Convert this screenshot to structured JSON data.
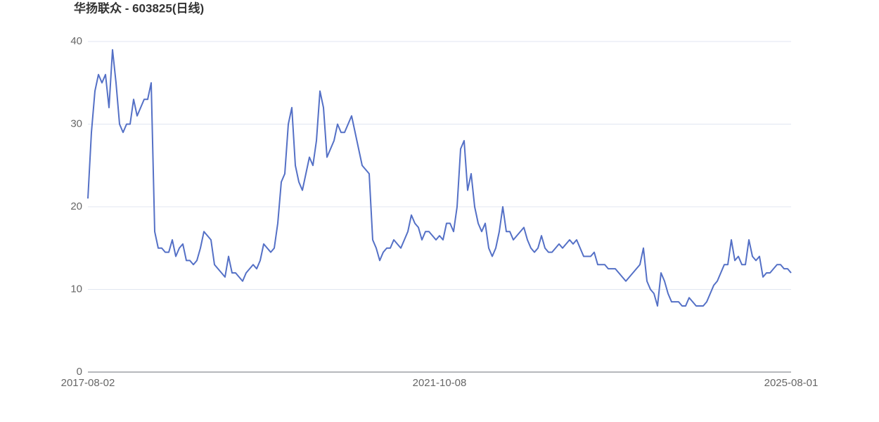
{
  "chart_data": {
    "type": "line",
    "title": "华扬联众 - 603825(日线)",
    "categories": [
      "2017-08-02",
      null,
      null,
      null,
      null,
      null,
      null,
      null,
      null,
      null,
      null,
      null,
      null,
      null,
      null,
      null,
      null,
      null,
      null,
      null,
      null,
      null,
      null,
      null,
      null,
      null,
      null,
      null,
      null,
      null,
      null,
      null,
      null,
      null,
      null,
      null,
      null,
      null,
      null,
      null,
      null,
      null,
      null,
      null,
      null,
      null,
      null,
      null,
      null,
      null,
      null,
      null,
      null,
      null,
      null,
      null,
      null,
      null,
      null,
      null,
      null,
      null,
      null,
      null,
      null,
      null,
      null,
      null,
      null,
      null,
      null,
      null,
      null,
      null,
      null,
      null,
      null,
      null,
      null,
      null,
      null,
      null,
      null,
      null,
      null,
      null,
      null,
      null,
      null,
      null,
      null,
      null,
      null,
      null,
      null,
      null,
      null,
      null,
      null,
      null,
      "2021-10-08",
      null,
      null,
      null,
      null,
      null,
      null,
      null,
      null,
      null,
      null,
      null,
      null,
      null,
      null,
      null,
      null,
      null,
      null,
      null,
      null,
      null,
      null,
      null,
      null,
      null,
      null,
      null,
      null,
      null,
      null,
      null,
      null,
      null,
      null,
      null,
      null,
      null,
      null,
      null,
      null,
      null,
      null,
      null,
      null,
      null,
      null,
      null,
      null,
      null,
      null,
      null,
      null,
      null,
      null,
      null,
      null,
      null,
      null,
      null,
      null,
      null,
      null,
      null,
      null,
      null,
      null,
      null,
      null,
      null,
      null,
      null,
      null,
      null,
      null,
      null,
      null,
      null,
      null,
      null,
      null,
      null,
      null,
      null,
      null,
      null,
      null,
      null,
      null,
      null,
      null,
      null,
      null,
      null,
      null,
      null,
      null,
      null,
      null,
      null,
      "2025-08-01"
    ],
    "values": [
      21,
      29,
      34,
      36,
      35,
      36,
      32,
      39,
      35,
      30,
      29,
      30,
      30,
      33,
      31,
      32,
      33,
      33,
      35,
      17,
      15,
      15,
      14.5,
      14.5,
      16,
      14,
      15,
      15.5,
      13.5,
      13.5,
      13,
      13.5,
      15,
      17,
      16.5,
      16,
      13,
      12.5,
      12,
      11.5,
      14,
      12,
      12,
      11.5,
      11,
      12,
      12.5,
      13,
      12.5,
      13.5,
      15.5,
      15,
      14.5,
      15,
      18,
      23,
      24,
      30,
      32,
      25,
      23,
      22,
      24,
      26,
      25,
      28,
      34,
      32,
      26,
      27,
      28,
      30,
      29,
      29,
      30,
      31,
      29,
      27,
      25,
      24.5,
      24,
      16,
      15,
      13.5,
      14.5,
      15,
      15,
      16,
      15.5,
      15,
      16,
      17,
      19,
      18,
      17.5,
      16,
      17,
      17,
      16.5,
      16,
      16.5,
      16,
      18,
      18,
      17,
      20,
      27,
      28,
      22,
      24,
      20,
      18,
      17,
      18,
      15,
      14,
      15,
      17,
      20,
      17,
      17,
      16,
      16.5,
      17,
      17.5,
      16,
      15,
      14.5,
      15,
      16.5,
      15,
      14.5,
      14.5,
      15,
      15.5,
      15,
      15.5,
      16,
      15.5,
      16,
      15,
      14,
      14,
      14,
      14.5,
      13,
      13,
      13,
      12.5,
      12.5,
      12.5,
      12,
      11.5,
      11,
      11.5,
      12,
      12.5,
      13,
      15,
      11,
      10,
      9.5,
      8,
      12,
      11,
      9.5,
      8.5,
      8.5,
      8.5,
      8,
      8,
      9,
      8.5,
      8,
      8,
      8,
      8.5,
      9.5,
      10.5,
      11,
      12,
      13,
      13,
      16,
      13.5,
      14,
      13,
      13,
      16,
      14,
      13.5,
      14,
      11.5,
      12,
      12,
      12.5,
      13,
      13,
      12.5,
      12.5,
      12
    ],
    "color": "#5470c6",
    "ylim": [
      0,
      40
    ],
    "yticks": [
      0,
      10,
      20,
      30,
      40
    ],
    "grid": true
  }
}
